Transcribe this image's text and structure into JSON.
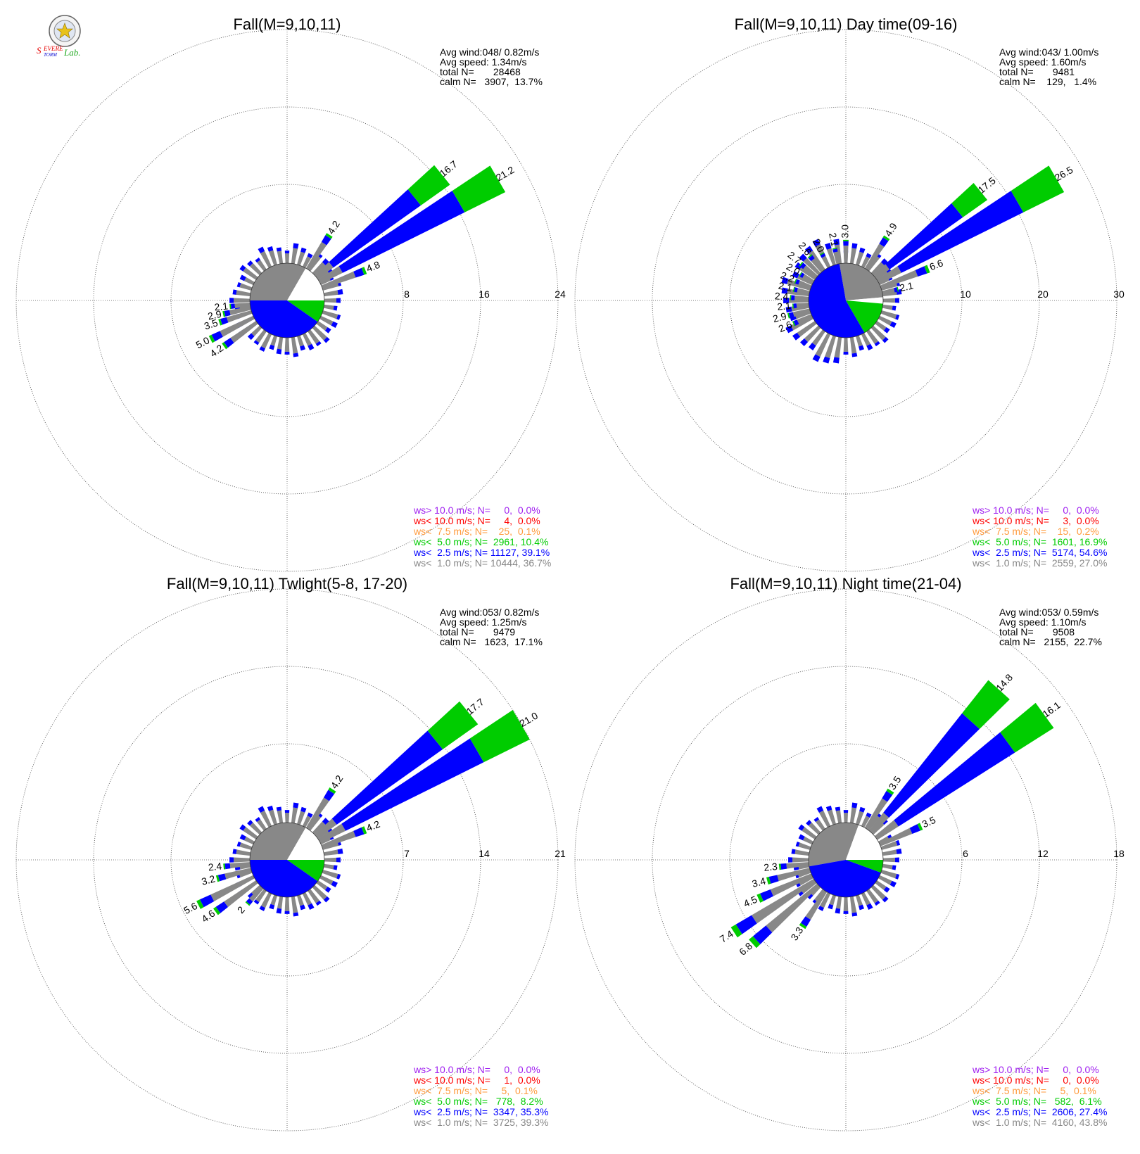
{
  "logo": {
    "text": "Severe Storm Lab."
  },
  "chart_data": [
    {
      "type": "wind-rose",
      "title": "Fall(M=9,10,11)",
      "rings": [
        8,
        16,
        24
      ],
      "stats": {
        "avg_wind": "Avg wind:048/ 0.82m/s",
        "avg_speed": "Avg speed: 1.34m/s",
        "total_n": "total N=       28468",
        "calm_n": "calm N=   3907,  13.7%"
      },
      "legend": [
        {
          "label": "ws> 10.0 m/s; N=     0,  0.0%",
          "color": "#a020f0"
        },
        {
          "label": "ws< 10.0 m/s; N=     4,  0.0%",
          "color": "#ff0000"
        },
        {
          "label": "ws<  7.5 m/s; N=    25,  0.1%",
          "color": "#ff9a3c"
        },
        {
          "label": "ws<  5.0 m/s; N=  2961, 10.4%",
          "color": "#00cc00"
        },
        {
          "label": "ws<  2.5 m/s; N= 11127, 39.1%",
          "color": "#0000ff"
        },
        {
          "label": "ws<  1.0 m/s; N= 10444, 36.7%",
          "color": "#888888"
        }
      ],
      "labeled_petals": [
        {
          "dir_deg": 51,
          "total": 16.7,
          "label": "16.7"
        },
        {
          "dir_deg": 60,
          "total": 21.2,
          "label": "21.2"
        },
        {
          "dir_deg": 33,
          "total": 4.2,
          "label": "4.2"
        },
        {
          "dir_deg": 69,
          "total": 4.8,
          "label": "4.8"
        },
        {
          "dir_deg": 264,
          "total": 2.1,
          "label": "2.1"
        },
        {
          "dir_deg": 258,
          "total": 2.9,
          "label": "2.9"
        },
        {
          "dir_deg": 252,
          "total": 3.5,
          "label": "3.5"
        },
        {
          "dir_deg": 243,
          "total": 5.0,
          "label": "5.0"
        },
        {
          "dir_deg": 234,
          "total": 4.2,
          "label": "4.2"
        }
      ]
    },
    {
      "type": "wind-rose",
      "title": "Fall(M=9,10,11) Day time(09-16)",
      "rings": [
        10,
        20,
        30
      ],
      "stats": {
        "avg_wind": "Avg wind:043/ 1.00m/s",
        "avg_speed": "Avg speed: 1.60m/s",
        "total_n": "total N=       9481",
        "calm_n": "calm N=    129,   1.4%"
      },
      "legend": [
        {
          "label": "ws> 10.0 m/s; N=     0,  0.0%",
          "color": "#a020f0"
        },
        {
          "label": "ws< 10.0 m/s; N=     3,  0.0%",
          "color": "#ff0000"
        },
        {
          "label": "ws<  7.5 m/s; N=    15,  0.2%",
          "color": "#ff9a3c"
        },
        {
          "label": "ws<  5.0 m/s; N=  1601, 16.9%",
          "color": "#00cc00"
        },
        {
          "label": "ws<  2.5 m/s; N=  5174, 54.6%",
          "color": "#0000ff"
        },
        {
          "label": "ws<  1.0 m/s; N=  2559, 27.0%",
          "color": "#888888"
        }
      ],
      "labeled_petals": [
        {
          "dir_deg": 51,
          "total": 17.5,
          "label": "17.5"
        },
        {
          "dir_deg": 60,
          "total": 26.5,
          "label": "26.5"
        },
        {
          "dir_deg": 33,
          "total": 4.9,
          "label": "4.9"
        },
        {
          "dir_deg": 69,
          "total": 6.6,
          "label": "6.6"
        },
        {
          "dir_deg": 78,
          "total": 2.1,
          "label": "2.1"
        },
        {
          "dir_deg": 0,
          "total": 3.0,
          "label": "3.0"
        },
        {
          "dir_deg": 348,
          "total": 2.1,
          "label": "2.1"
        },
        {
          "dir_deg": 333,
          "total": 2.0,
          "label": "2.0"
        },
        {
          "dir_deg": 321,
          "total": 2.6,
          "label": "2.6"
        },
        {
          "dir_deg": 309,
          "total": 2.7,
          "label": "2.7"
        },
        {
          "dir_deg": 300,
          "total": 2.0,
          "label": "2.0"
        },
        {
          "dir_deg": 291,
          "total": 2.2,
          "label": "2.2"
        },
        {
          "dir_deg": 282,
          "total": 2.1,
          "label": "2.1"
        },
        {
          "dir_deg": 273,
          "total": 2.4,
          "label": "2.4"
        },
        {
          "dir_deg": 264,
          "total": 2.1,
          "label": "2.1"
        },
        {
          "dir_deg": 255,
          "total": 2.9,
          "label": "2.9"
        },
        {
          "dir_deg": 246,
          "total": 2.6,
          "label": "2.6"
        }
      ]
    },
    {
      "type": "wind-rose",
      "title": "Fall(M=9,10,11) Twlight(5-8, 17-20)",
      "rings": [
        7,
        14,
        21
      ],
      "stats": {
        "avg_wind": "Avg wind:053/ 0.82m/s",
        "avg_speed": "Avg speed: 1.25m/s",
        "total_n": "total N=       9479",
        "calm_n": "calm N=   1623,  17.1%"
      },
      "legend": [
        {
          "label": "ws> 10.0 m/s; N=     0,  0.0%",
          "color": "#a020f0"
        },
        {
          "label": "ws< 10.0 m/s; N=     1,  0.0%",
          "color": "#ff0000"
        },
        {
          "label": "ws<  7.5 m/s; N=     5,  0.1%",
          "color": "#ff9a3c"
        },
        {
          "label": "ws<  5.0 m/s; N=   778,  8.2%",
          "color": "#00cc00"
        },
        {
          "label": "ws<  2.5 m/s; N=  3347, 35.3%",
          "color": "#0000ff"
        },
        {
          "label": "ws<  1.0 m/s; N=  3725, 39.3%",
          "color": "#888888"
        }
      ],
      "labeled_petals": [
        {
          "dir_deg": 51,
          "total": 17.7,
          "label": "17.7"
        },
        {
          "dir_deg": 60,
          "total": 21.0,
          "label": "21.0"
        },
        {
          "dir_deg": 33,
          "total": 4.2,
          "label": "4.2"
        },
        {
          "dir_deg": 69,
          "total": 4.2,
          "label": "4.2"
        },
        {
          "dir_deg": 264,
          "total": 2.4,
          "label": "2.4"
        },
        {
          "dir_deg": 255,
          "total": 3.2,
          "label": "3.2"
        },
        {
          "dir_deg": 243,
          "total": 5.6,
          "label": "5.6"
        },
        {
          "dir_deg": 234,
          "total": 4.6,
          "label": "4.6"
        },
        {
          "dir_deg": 222,
          "total": 2.0,
          "label": "2"
        }
      ]
    },
    {
      "type": "wind-rose",
      "title": "Fall(M=9,10,11) Night time(21-04)",
      "rings": [
        6,
        12,
        18
      ],
      "stats": {
        "avg_wind": "Avg wind:053/ 0.59m/s",
        "avg_speed": "Avg speed: 1.10m/s",
        "total_n": "total N=       9508",
        "calm_n": "calm N=   2155,  22.7%"
      },
      "legend": [
        {
          "label": "ws> 10.0 m/s; N=     0,  0.0%",
          "color": "#a020f0"
        },
        {
          "label": "ws< 10.0 m/s; N=     0,  0.0%",
          "color": "#ff0000"
        },
        {
          "label": "ws<  7.5 m/s; N=     5,  0.1%",
          "color": "#ff9a3c"
        },
        {
          "label": "ws<  5.0 m/s; N=   582,  6.1%",
          "color": "#00cc00"
        },
        {
          "label": "ws<  2.5 m/s; N=  2606, 27.4%",
          "color": "#0000ff"
        },
        {
          "label": "ws<  1.0 m/s; N=  4160, 43.8%",
          "color": "#888888"
        }
      ],
      "labeled_petals": [
        {
          "dir_deg": 42,
          "total": 14.8,
          "label": "14.8"
        },
        {
          "dir_deg": 54,
          "total": 16.1,
          "label": "16.1"
        },
        {
          "dir_deg": 33,
          "total": 3.5,
          "label": "3.5"
        },
        {
          "dir_deg": 66,
          "total": 3.5,
          "label": "3.5"
        },
        {
          "dir_deg": 264,
          "total": 2.3,
          "label": "2.3"
        },
        {
          "dir_deg": 255,
          "total": 3.4,
          "label": "3.4"
        },
        {
          "dir_deg": 246,
          "total": 4.5,
          "label": "4.5"
        },
        {
          "dir_deg": 237,
          "total": 7.4,
          "label": "7.4"
        },
        {
          "dir_deg": 228,
          "total": 6.8,
          "label": "6.8"
        },
        {
          "dir_deg": 213,
          "total": 3.3,
          "label": "3.3"
        }
      ]
    }
  ]
}
